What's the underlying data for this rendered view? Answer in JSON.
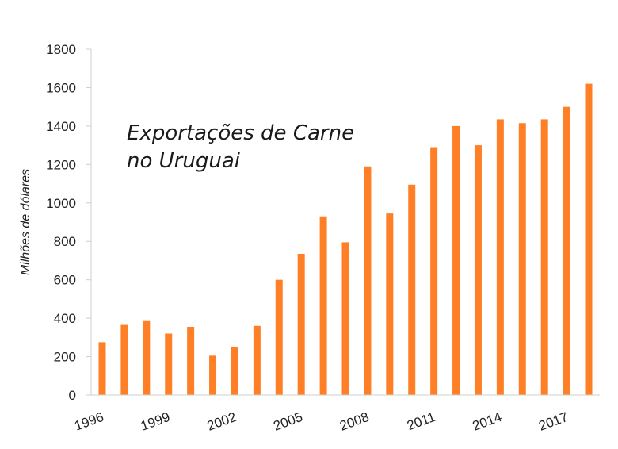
{
  "chart_data": {
    "type": "bar",
    "title_lines": [
      "Exportações de Carne",
      "no Uruguai"
    ],
    "ylabel": "Milhões de dólares",
    "xlabel": "",
    "ylim": [
      0,
      1800
    ],
    "yticks": [
      "0",
      "200",
      "400",
      "600",
      "800",
      "1000",
      "1200",
      "1400",
      "1600",
      "1800"
    ],
    "xtick_labels": [
      "1996",
      "1999",
      "2002",
      "2005",
      "2008",
      "2011",
      "2014",
      "2017"
    ],
    "categories": [
      "1996",
      "1997",
      "1998",
      "1999",
      "2000",
      "2001",
      "2002",
      "2003",
      "2004",
      "2005",
      "2006",
      "2007",
      "2008",
      "2009",
      "2010",
      "2011",
      "2012",
      "2013",
      "2014",
      "2015",
      "2016",
      "2017",
      "2018"
    ],
    "values": [
      275,
      365,
      385,
      320,
      355,
      205,
      250,
      360,
      600,
      735,
      930,
      795,
      1190,
      945,
      1095,
      1290,
      1400,
      1300,
      1435,
      1415,
      1435,
      1500,
      1620
    ],
    "bar_color": "#ff7f27",
    "grid": false,
    "legend": "none"
  }
}
